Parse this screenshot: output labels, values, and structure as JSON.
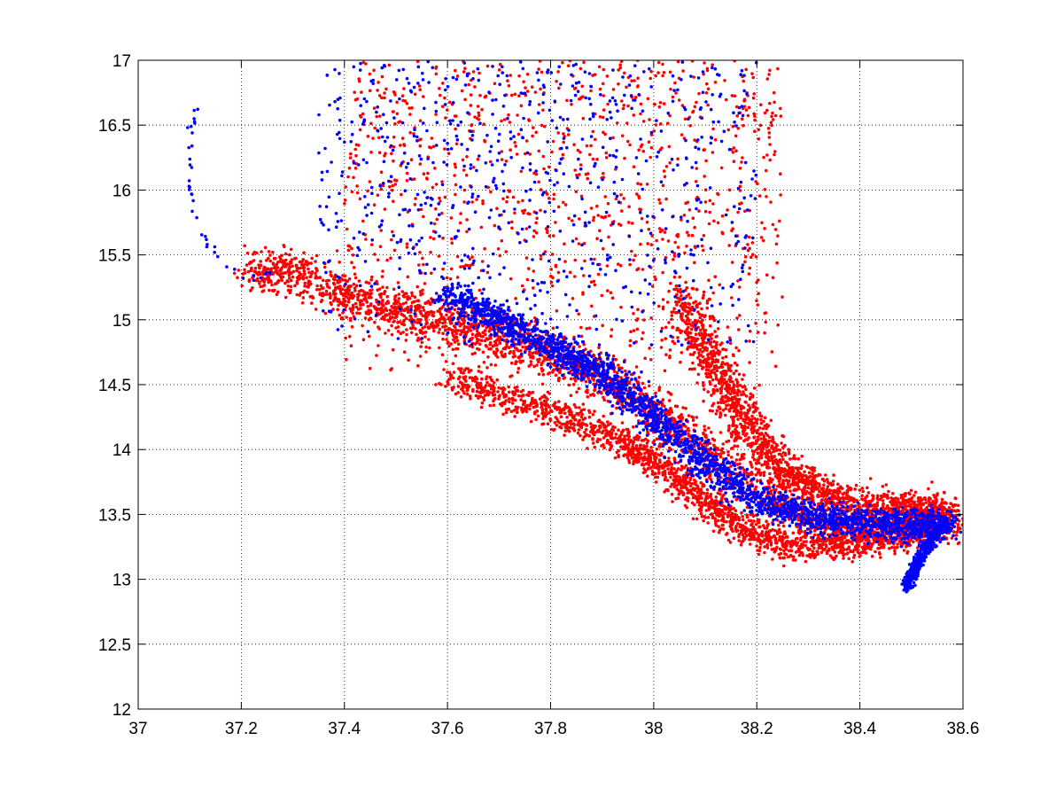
{
  "chart_data": {
    "type": "scatter",
    "title": "",
    "xlabel": "",
    "ylabel": "",
    "xlim": [
      37,
      38.6
    ],
    "ylim": [
      12,
      17
    ],
    "x_ticks": [
      37,
      37.2,
      37.4,
      37.6,
      37.8,
      38,
      38.2,
      38.4,
      38.6
    ],
    "y_ticks": [
      12,
      12.5,
      13,
      13.5,
      14,
      14.5,
      15,
      15.5,
      16,
      16.5,
      17
    ],
    "x_tick_labels": [
      "37",
      "37.2",
      "37.4",
      "37.6",
      "37.8",
      "38",
      "38.2",
      "38.4",
      "38.6"
    ],
    "y_tick_labels": [
      "12",
      "12.5",
      "13",
      "13.5",
      "14",
      "14.5",
      "15",
      "15.5",
      "16",
      "16.5",
      "17"
    ],
    "grid": true,
    "grid_style": "dotted",
    "legend": "none",
    "marker": "dot",
    "series": [
      {
        "color": "#ff0000",
        "points_description": "dense cloud; main band from (37.22,15.35) descending through (37.6,15.0), (37.9,14.6), (38.1,14.0), (38.3,13.45) to (38.58,13.45); broad scatter rising to 17 between x 37.4 and 38.25",
        "band_path": [
          [
            37.22,
            15.36
          ],
          [
            37.3,
            15.38
          ],
          [
            37.4,
            15.2
          ],
          [
            37.5,
            15.08
          ],
          [
            37.6,
            14.98
          ],
          [
            37.7,
            14.88
          ],
          [
            37.8,
            14.72
          ],
          [
            37.9,
            14.55
          ],
          [
            38.0,
            14.3
          ],
          [
            38.1,
            14.0
          ],
          [
            38.2,
            13.7
          ],
          [
            38.3,
            13.45
          ],
          [
            38.4,
            13.38
          ],
          [
            38.5,
            13.42
          ],
          [
            38.58,
            13.45
          ]
        ],
        "lower_band_path": [
          [
            37.6,
            14.55
          ],
          [
            37.8,
            14.3
          ],
          [
            37.95,
            14.05
          ],
          [
            38.05,
            13.75
          ],
          [
            38.15,
            13.45
          ],
          [
            38.25,
            13.25
          ],
          [
            38.4,
            13.3
          ],
          [
            38.55,
            13.4
          ]
        ],
        "upper_band_path": [
          [
            38.05,
            15.2
          ],
          [
            38.1,
            14.8
          ],
          [
            38.15,
            14.4
          ],
          [
            38.2,
            14.05
          ],
          [
            38.28,
            13.75
          ],
          [
            38.38,
            13.6
          ],
          [
            38.5,
            13.55
          ],
          [
            38.58,
            13.52
          ]
        ],
        "scatter_region": {
          "x": [
            37.4,
            38.25
          ],
          "y": [
            14.6,
            17.0
          ]
        }
      },
      {
        "color": "#0000ff",
        "points_description": "band from (37.6,15.2) descending through (37.9,14.6), (38.1,13.9), (38.3,13.45) to hook ending near (38.49,12.94) and (38.58,13.45); loop near x 37.1 from (37.12,16.7) down to (37.22,15.3); scatter between x 37.35 and 38.2 up to 17",
        "band_path": [
          [
            37.6,
            15.2
          ],
          [
            37.7,
            15.0
          ],
          [
            37.8,
            14.8
          ],
          [
            37.9,
            14.6
          ],
          [
            38.0,
            14.25
          ],
          [
            38.1,
            13.9
          ],
          [
            38.2,
            13.62
          ],
          [
            38.3,
            13.48
          ],
          [
            38.4,
            13.45
          ],
          [
            38.5,
            13.4
          ],
          [
            38.57,
            13.45
          ]
        ],
        "hook_path": [
          [
            38.57,
            13.45
          ],
          [
            38.52,
            13.2
          ],
          [
            38.49,
            12.94
          ]
        ],
        "loop_path": [
          [
            37.12,
            16.73
          ],
          [
            37.1,
            16.45
          ],
          [
            37.1,
            16.1
          ],
          [
            37.11,
            15.8
          ],
          [
            37.14,
            15.55
          ],
          [
            37.18,
            15.38
          ],
          [
            37.22,
            15.32
          ],
          [
            37.26,
            15.36
          ]
        ],
        "scatter_region": {
          "x": [
            37.35,
            38.2
          ],
          "y": [
            14.8,
            17.0
          ]
        }
      }
    ]
  }
}
